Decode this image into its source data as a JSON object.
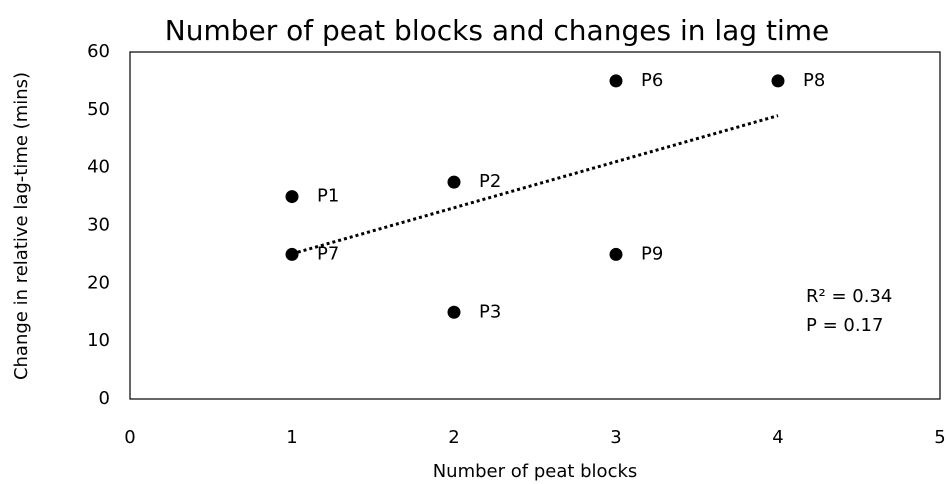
{
  "chart_data": {
    "type": "scatter",
    "title": "Number of peat blocks and changes in lag time",
    "x_label": "Number of peat blocks",
    "y_label": "Change in relative lag-time (mins)",
    "x": [
      1,
      1,
      2,
      2,
      3,
      3,
      4
    ],
    "series": [
      {
        "color": "#000000",
        "values": [
          35,
          25,
          37.5,
          15,
          55,
          25,
          55
        ],
        "point_labels": [
          "P1",
          "P7",
          "P2",
          "P3",
          "P6",
          "P9",
          "P8"
        ]
      }
    ],
    "trendline": {
      "x": [
        1,
        4
      ],
      "y": [
        25.1,
        49
      ],
      "color": "#000000"
    },
    "annotations": [
      "R² = 0.34",
      "P = 0.17"
    ],
    "xlim": [
      0,
      5
    ],
    "xticks": [
      0,
      1,
      2,
      3,
      4,
      5
    ],
    "ylim": [
      0,
      60
    ],
    "yticks": [
      0,
      10,
      20,
      30,
      40,
      50,
      60
    ],
    "grid": false
  }
}
